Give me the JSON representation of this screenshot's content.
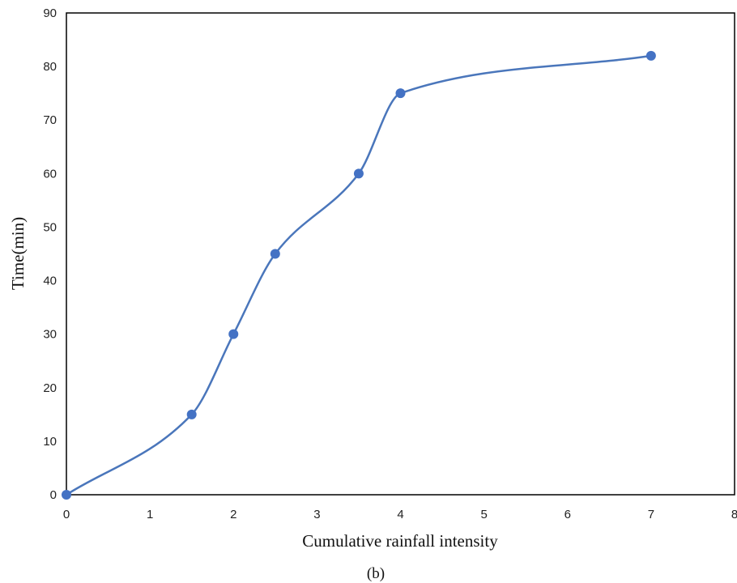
{
  "chart_data": {
    "type": "line",
    "smooth": true,
    "x": [
      0,
      1.5,
      2,
      2.5,
      3.5,
      4,
      7
    ],
    "series": [
      {
        "values": [
          0,
          15,
          30,
          45,
          60,
          75,
          82
        ]
      }
    ],
    "xlabel": "Cumulative rainfall intensity",
    "ylabel": "Time(min)",
    "xlim": [
      0,
      8
    ],
    "ylim": [
      0,
      90
    ],
    "xticks": [
      0,
      1,
      2,
      3,
      4,
      5,
      6,
      7,
      8
    ],
    "yticks": [
      0,
      10,
      20,
      30,
      40,
      50,
      60,
      70,
      80,
      90
    ],
    "grid": false,
    "markers": true,
    "line_color": "#4a76bb",
    "marker_color": "#4472c4",
    "caption": "(b)"
  }
}
